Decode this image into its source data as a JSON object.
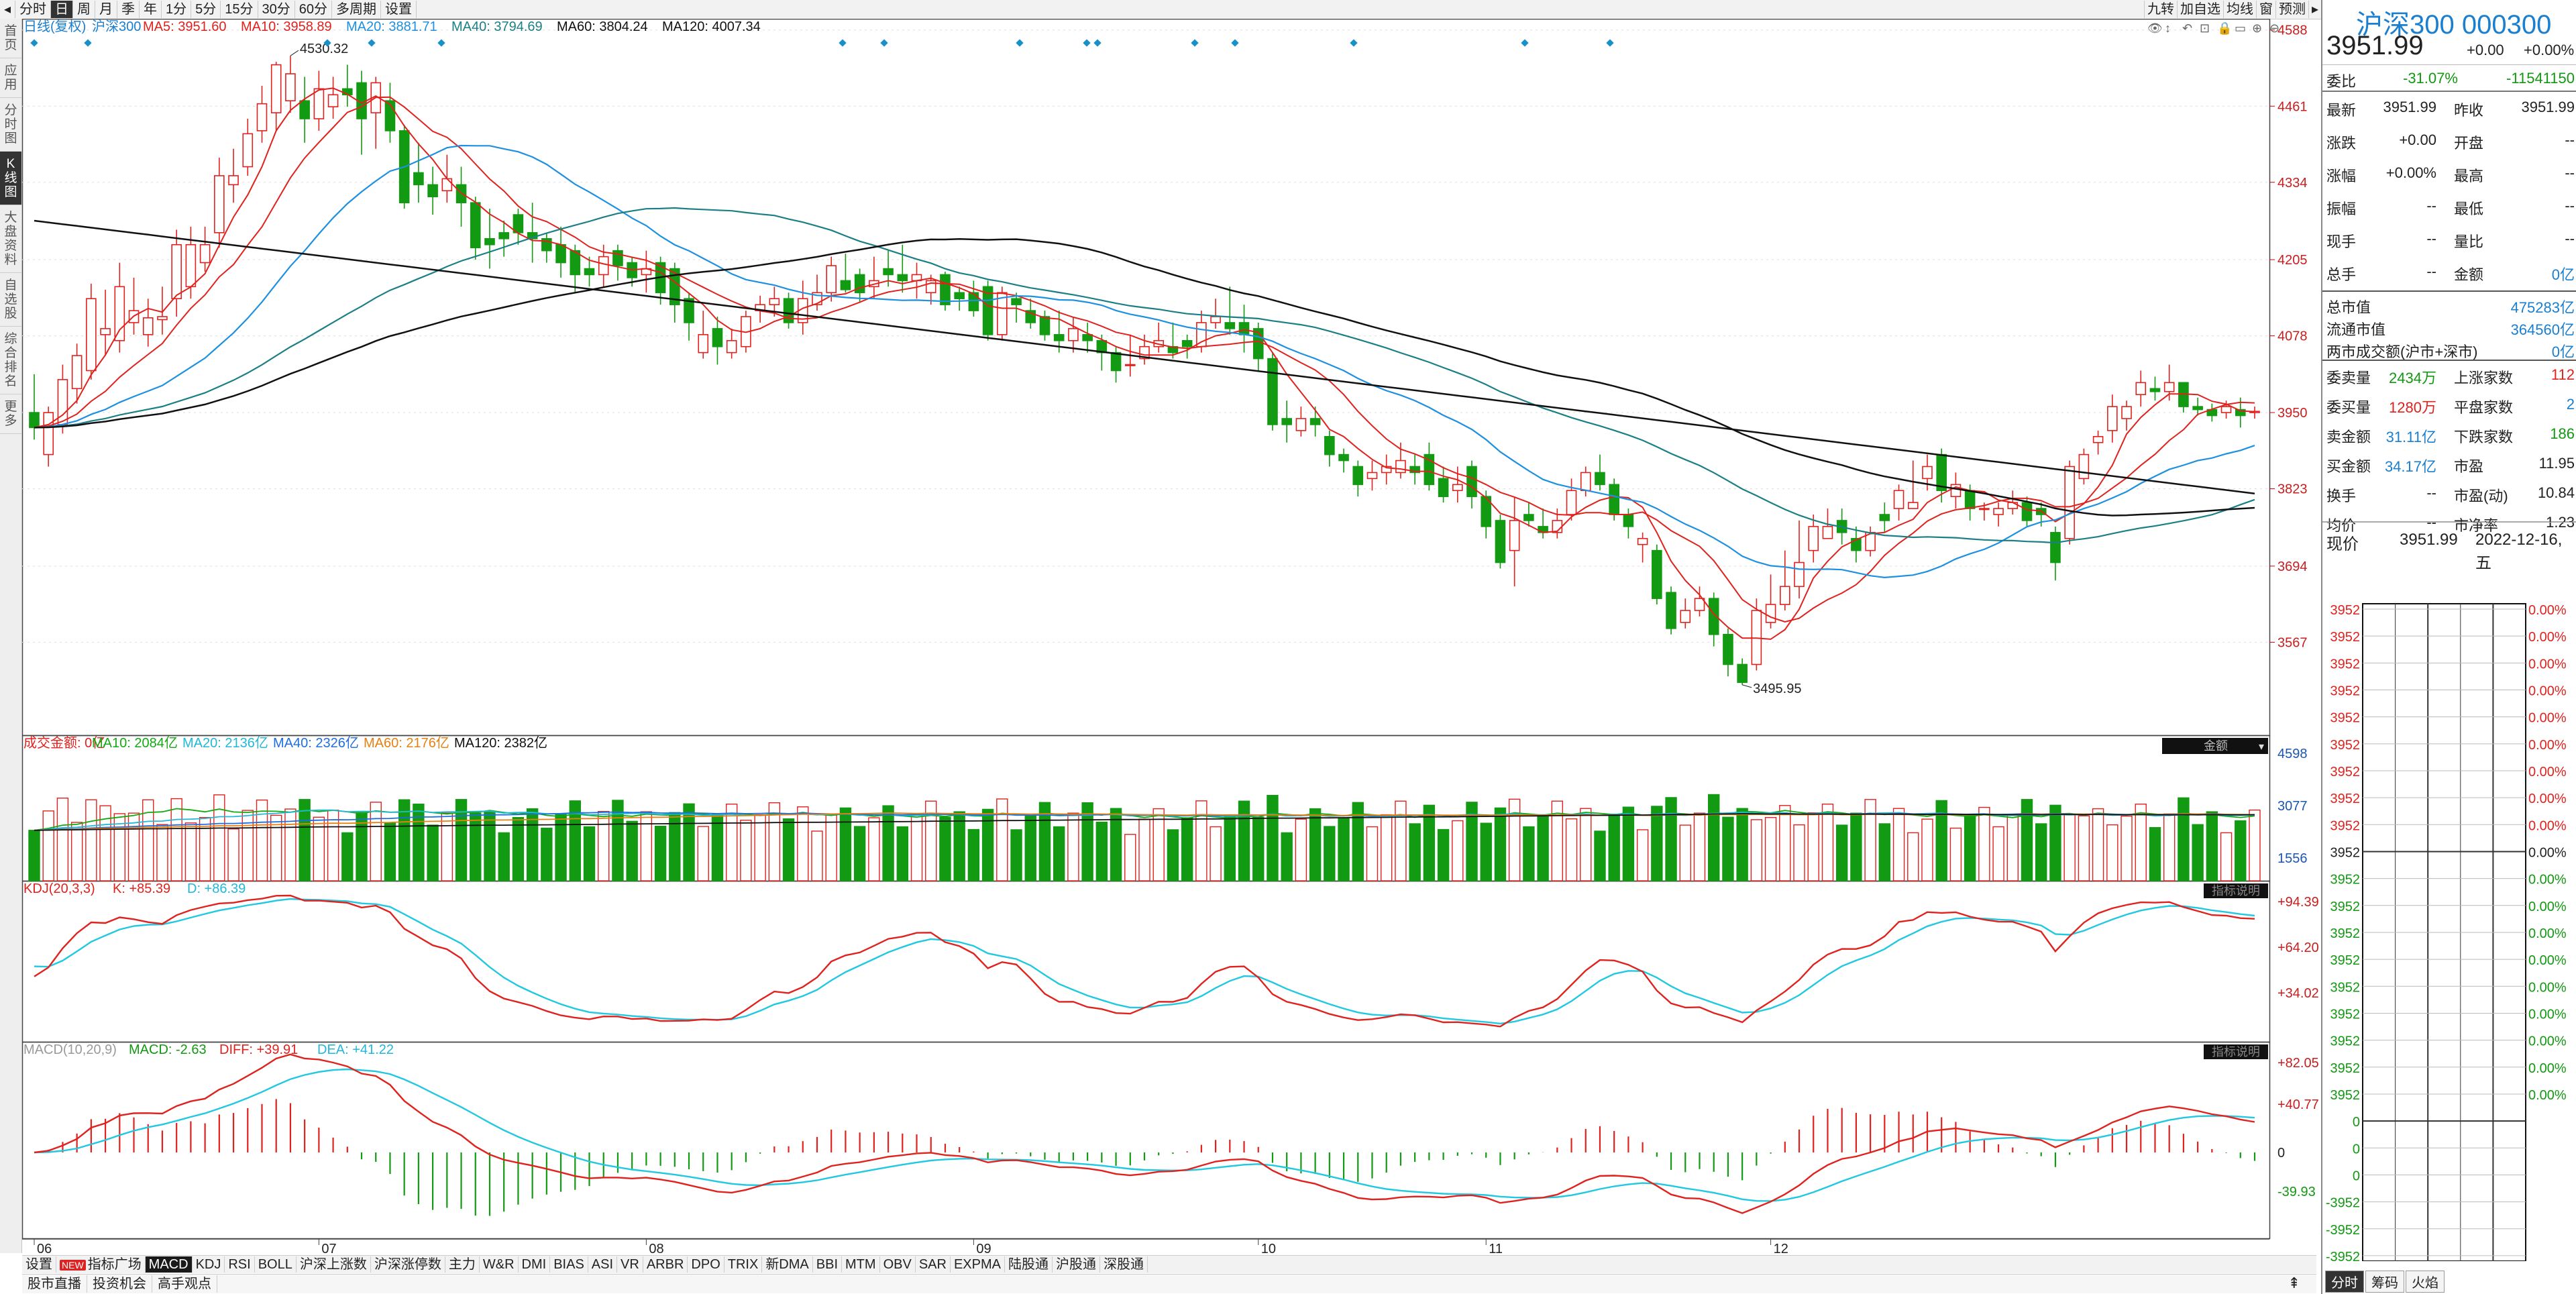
{
  "toolbar": {
    "left": [
      "分时",
      "日",
      "周",
      "月",
      "季",
      "年",
      "1分",
      "5分",
      "15分",
      "30分",
      "60分",
      "多周期",
      "设置"
    ],
    "active": "日",
    "right": [
      "九转",
      "加自选",
      "均线",
      "窗",
      "预测"
    ]
  },
  "left_nav": [
    {
      "label": "首页"
    },
    {
      "label": "应用"
    },
    {
      "label": "分时图"
    },
    {
      "label": "K线图",
      "active": true
    },
    {
      "label": "大盘资料"
    },
    {
      "label": "自选股"
    },
    {
      "label": "综合排名"
    },
    {
      "label": "更多"
    }
  ],
  "main_chart": {
    "title": "日线(复权)",
    "name": "沪深300",
    "ma": [
      {
        "label": "MA5: 3951.60",
        "color": "#e0221e"
      },
      {
        "label": "MA10: 3958.89",
        "color": "#e0221e"
      },
      {
        "label": "MA20: 3881.71",
        "color": "#1e90e0"
      },
      {
        "label": "MA40: 3794.69",
        "color": "#1b7f86"
      },
      {
        "label": "MA60: 3804.24",
        "color": "#111111"
      },
      {
        "label": "MA120: 4007.34",
        "color": "#111111"
      }
    ],
    "yticks": [
      4588,
      4461,
      4334,
      4205,
      4078,
      3950,
      3823,
      3694,
      3567
    ],
    "high_label": "4530.32",
    "low_label": "3495.95"
  },
  "volume_panel": {
    "legend": [
      {
        "label": "成交金额: 0亿",
        "color": "#e0221e"
      },
      {
        "label": "MA10: 2084亿",
        "color": "#11aa11"
      },
      {
        "label": "MA20: 2136亿",
        "color": "#20b8d8"
      },
      {
        "label": "MA40: 2326亿",
        "color": "#1e6ee0"
      },
      {
        "label": "MA60: 2176亿",
        "color": "#e88010"
      },
      {
        "label": "MA120: 2382亿",
        "color": "#111111"
      }
    ],
    "box": "金额",
    "yticks": [
      "4598",
      "3077",
      "1556"
    ]
  },
  "kdj_panel": {
    "legend": [
      {
        "label": "KDJ(20,3,3)",
        "color": "#e0221e"
      },
      {
        "label": "K: +85.39",
        "color": "#e0221e"
      },
      {
        "label": "D: +86.39",
        "color": "#20b8d8"
      }
    ],
    "box": "指标说明",
    "yticks": [
      "+94.39",
      "+64.20",
      "+34.02"
    ]
  },
  "macd_panel": {
    "legend": [
      {
        "label": "MACD(10,20,9)",
        "color": "#999999"
      },
      {
        "label": "MACD: -2.63",
        "color": "#119911"
      },
      {
        "label": "DIFF: +39.91",
        "color": "#e0221e"
      },
      {
        "label": "DEA: +41.22",
        "color": "#20b8d8"
      }
    ],
    "box": "指标说明",
    "yticks": [
      "+82.05",
      "+40.77",
      "0",
      "-39.93"
    ]
  },
  "x_months": [
    "06",
    "07",
    "08",
    "09",
    "10",
    "11",
    "12"
  ],
  "indicator_tabs": [
    "设置",
    "指标广场",
    "MACD",
    "KDJ",
    "RSI",
    "BOLL",
    "沪深上涨数",
    "沪深涨停数",
    "主力",
    "W&R",
    "DMI",
    "BIAS",
    "ASI",
    "VR",
    "ARBR",
    "DPO",
    "TRIX",
    "新DMA",
    "BBI",
    "MTM",
    "OBV",
    "SAR",
    "EXPMA",
    "陆股通",
    "沪股通",
    "深股通"
  ],
  "indicator_active": "MACD",
  "new_badge": "NEW",
  "bottom_tabs": [
    "股市直播",
    "投资机会",
    "高手观点"
  ],
  "panel": {
    "name": "沪深300 000300",
    "price": "3951.99",
    "change": "+0.00",
    "pct": "+0.00%",
    "weibi": {
      "label": "委比",
      "v1": "-31.07%",
      "v2": "-11541150"
    },
    "rows1": [
      [
        {
          "t": "最新",
          "c": "dark"
        },
        {
          "t": "3951.99",
          "c": "dark"
        },
        {
          "t": "昨收",
          "c": "dark"
        },
        {
          "t": "3951.99",
          "c": "dark"
        }
      ],
      [
        {
          "t": "涨跌",
          "c": "dark"
        },
        {
          "t": "+0.00",
          "c": "dark"
        },
        {
          "t": "开盘",
          "c": "dark"
        },
        {
          "t": "--",
          "c": "dark"
        }
      ],
      [
        {
          "t": "涨幅",
          "c": "dark"
        },
        {
          "t": "+0.00%",
          "c": "dark"
        },
        {
          "t": "最高",
          "c": "dark"
        },
        {
          "t": "--",
          "c": "dark"
        }
      ],
      [
        {
          "t": "振幅",
          "c": "dark"
        },
        {
          "t": "--",
          "c": "dark"
        },
        {
          "t": "最低",
          "c": "dark"
        },
        {
          "t": "--",
          "c": "dark"
        }
      ],
      [
        {
          "t": "现手",
          "c": "dark"
        },
        {
          "t": "--",
          "c": "dark"
        },
        {
          "t": "量比",
          "c": "dark"
        },
        {
          "t": "--",
          "c": "dark"
        }
      ],
      [
        {
          "t": "总手",
          "c": "dark"
        },
        {
          "t": "--",
          "c": "dark"
        },
        {
          "t": "金额",
          "c": "dark"
        },
        {
          "t": "0亿",
          "c": "blue"
        }
      ]
    ],
    "rows2": [
      {
        "l": "总市值",
        "v": "475283亿"
      },
      {
        "l": "流通市值",
        "v": "364560亿"
      },
      {
        "l": "两市成交额(沪市+深市)",
        "v": "0亿"
      }
    ],
    "rows3": [
      [
        {
          "t": "委卖量",
          "c": "dark"
        },
        {
          "t": "2434万",
          "c": "green"
        },
        {
          "t": "上涨家数",
          "c": "dark"
        },
        {
          "t": "112",
          "c": "red"
        }
      ],
      [
        {
          "t": "委买量",
          "c": "dark"
        },
        {
          "t": "1280万",
          "c": "red"
        },
        {
          "t": "平盘家数",
          "c": "dark"
        },
        {
          "t": "2",
          "c": "blue"
        }
      ],
      [
        {
          "t": "卖金额",
          "c": "dark"
        },
        {
          "t": "31.11亿",
          "c": "blue"
        },
        {
          "t": "下跌家数",
          "c": "dark"
        },
        {
          "t": "186",
          "c": "green"
        }
      ],
      [
        {
          "t": "买金额",
          "c": "dark"
        },
        {
          "t": "34.17亿",
          "c": "blue"
        },
        {
          "t": "市盈",
          "c": "dark"
        },
        {
          "t": "11.95",
          "c": "dark"
        }
      ],
      [
        {
          "t": "换手",
          "c": "dark"
        },
        {
          "t": "--",
          "c": "dark"
        },
        {
          "t": "市盈(动)",
          "c": "dark"
        },
        {
          "t": "10.84",
          "c": "dark"
        }
      ],
      [
        {
          "t": "均价",
          "c": "dark"
        },
        {
          "t": "--",
          "c": "dark"
        },
        {
          "t": "市净率",
          "c": "dark"
        },
        {
          "t": "1.23",
          "c": "dark"
        }
      ]
    ],
    "now": {
      "label": "现价",
      "price": "3951.99",
      "date": "2022-12-16,五"
    },
    "mini_left": [
      "3952",
      "3952",
      "3952",
      "3952",
      "3952",
      "3952",
      "3952",
      "3952",
      "3952",
      "3952",
      "3952",
      "3952",
      "3952",
      "3952",
      "3952",
      "3952",
      "3952",
      "3952",
      "3952",
      "0",
      "0",
      "0",
      "-3952",
      "-3952",
      "-3952"
    ],
    "mini_right": [
      "0.00%",
      "0.00%",
      "0.00%",
      "0.00%",
      "0.00%",
      "0.00%",
      "0.00%",
      "0.00%",
      "0.00%",
      "0.00%",
      "0.00%",
      "0.00%",
      "0.00%",
      "0.00%",
      "0.00%",
      "0.00%",
      "0.00%",
      "0.00%",
      "0.00%"
    ],
    "tabs": [
      "分时",
      "筹码",
      "火焰"
    ],
    "tab_active": "分时"
  },
  "chart_data": {
    "type": "candlestick",
    "series_name": "沪深300",
    "ylim": [
      3450,
      4600
    ],
    "candles": [
      [
        3950,
        3925,
        4014,
        3905
      ],
      [
        3880,
        3950,
        3960,
        3860
      ],
      [
        3930,
        4005,
        4030,
        3915
      ],
      [
        3990,
        4045,
        4065,
        3965
      ],
      [
        4020,
        4140,
        4165,
        4005
      ],
      [
        4080,
        4090,
        4155,
        4045
      ],
      [
        4070,
        4160,
        4200,
        4050
      ],
      [
        4100,
        4120,
        4175,
        4080
      ],
      [
        4080,
        4108,
        4140,
        4060
      ],
      [
        4105,
        4110,
        4160,
        4080
      ],
      [
        4140,
        4230,
        4255,
        4110
      ],
      [
        4160,
        4230,
        4260,
        4140
      ],
      [
        4200,
        4230,
        4260,
        4185
      ],
      [
        4250,
        4345,
        4375,
        4225
      ],
      [
        4330,
        4345,
        4390,
        4300
      ],
      [
        4360,
        4415,
        4440,
        4345
      ],
      [
        4420,
        4465,
        4495,
        4400
      ],
      [
        4450,
        4530,
        4535,
        4420
      ],
      [
        4470,
        4515,
        4545,
        4450
      ],
      [
        4470,
        4440,
        4510,
        4400
      ],
      [
        4440,
        4490,
        4520,
        4420
      ],
      [
        4460,
        4480,
        4510,
        4440
      ],
      [
        4490,
        4480,
        4530,
        4460
      ],
      [
        4500,
        4440,
        4520,
        4380
      ],
      [
        4450,
        4500,
        4510,
        4390
      ],
      [
        4470,
        4420,
        4500,
        4400
      ],
      [
        4420,
        4300,
        4430,
        4290
      ],
      [
        4350,
        4330,
        4400,
        4300
      ],
      [
        4330,
        4310,
        4360,
        4280
      ],
      [
        4320,
        4340,
        4380,
        4300
      ],
      [
        4330,
        4300,
        4360,
        4260
      ],
      [
        4300,
        4225,
        4310,
        4205
      ],
      [
        4240,
        4230,
        4290,
        4190
      ],
      [
        4250,
        4240,
        4270,
        4210
      ],
      [
        4280,
        4250,
        4290,
        4230
      ],
      [
        4250,
        4240,
        4300,
        4200
      ],
      [
        4240,
        4220,
        4250,
        4200
      ],
      [
        4230,
        4200,
        4260,
        4175
      ],
      [
        4220,
        4180,
        4230,
        4150
      ],
      [
        4190,
        4180,
        4210,
        4160
      ],
      [
        4180,
        4210,
        4230,
        4160
      ],
      [
        4220,
        4195,
        4230,
        4170
      ],
      [
        4200,
        4175,
        4210,
        4160
      ],
      [
        4180,
        4190,
        4220,
        4150
      ],
      [
        4200,
        4150,
        4210,
        4130
      ],
      [
        4190,
        4130,
        4200,
        4100
      ],
      [
        4140,
        4100,
        4150,
        4070
      ],
      [
        4050,
        4080,
        4120,
        4040
      ],
      [
        4090,
        4060,
        4110,
        4030
      ],
      [
        4050,
        4070,
        4090,
        4040
      ],
      [
        4060,
        4110,
        4120,
        4050
      ],
      [
        4120,
        4130,
        4145,
        4100
      ],
      [
        4130,
        4140,
        4160,
        4110
      ],
      [
        4140,
        4100,
        4150,
        4090
      ],
      [
        4100,
        4140,
        4170,
        4080
      ],
      [
        4130,
        4150,
        4180,
        4120
      ],
      [
        4150,
        4195,
        4210,
        4135
      ],
      [
        4170,
        4155,
        4215,
        4150
      ],
      [
        4180,
        4150,
        4190,
        4135
      ],
      [
        4160,
        4170,
        4210,
        4140
      ],
      [
        4190,
        4180,
        4220,
        4160
      ],
      [
        4180,
        4170,
        4230,
        4150
      ],
      [
        4170,
        4180,
        4200,
        4140
      ],
      [
        4150,
        4170,
        4180,
        4130
      ],
      [
        4180,
        4130,
        4185,
        4120
      ],
      [
        4150,
        4140,
        4160,
        4120
      ],
      [
        4150,
        4120,
        4170,
        4110
      ],
      [
        4160,
        4080,
        4170,
        4070
      ],
      [
        4080,
        4150,
        4160,
        4070
      ],
      [
        4140,
        4130,
        4150,
        4100
      ],
      [
        4120,
        4100,
        4140,
        4090
      ],
      [
        4110,
        4080,
        4120,
        4070
      ],
      [
        4080,
        4070,
        4120,
        4050
      ],
      [
        4070,
        4090,
        4110,
        4050
      ],
      [
        4080,
        4070,
        4100,
        4050
      ],
      [
        4070,
        4050,
        4080,
        4020
      ],
      [
        4050,
        4020,
        4060,
        4000
      ],
      [
        4030,
        4030,
        4080,
        4010
      ],
      [
        4040,
        4060,
        4080,
        4030
      ],
      [
        4060,
        4070,
        4100,
        4050
      ],
      [
        4060,
        4050,
        4100,
        4040
      ],
      [
        4070,
        4060,
        4080,
        4040
      ],
      [
        4060,
        4100,
        4120,
        4050
      ],
      [
        4100,
        4110,
        4140,
        4090
      ],
      [
        4100,
        4090,
        4160,
        4080
      ],
      [
        4100,
        4080,
        4130,
        4050
      ],
      [
        4090,
        4040,
        4100,
        4020
      ],
      [
        4040,
        3930,
        4050,
        3920
      ],
      [
        3940,
        3930,
        3970,
        3900
      ],
      [
        3920,
        3940,
        3960,
        3910
      ],
      [
        3940,
        3930,
        3960,
        3910
      ],
      [
        3910,
        3880,
        3920,
        3860
      ],
      [
        3880,
        3870,
        3890,
        3850
      ],
      [
        3860,
        3830,
        3870,
        3810
      ],
      [
        3840,
        3850,
        3870,
        3820
      ],
      [
        3850,
        3860,
        3880,
        3830
      ],
      [
        3850,
        3870,
        3900,
        3840
      ],
      [
        3860,
        3850,
        3880,
        3830
      ],
      [
        3880,
        3830,
        3900,
        3820
      ],
      [
        3840,
        3810,
        3860,
        3800
      ],
      [
        3820,
        3830,
        3860,
        3800
      ],
      [
        3860,
        3810,
        3870,
        3790
      ],
      [
        3810,
        3760,
        3820,
        3740
      ],
      [
        3770,
        3700,
        3780,
        3690
      ],
      [
        3720,
        3770,
        3810,
        3660
      ],
      [
        3780,
        3770,
        3800,
        3760
      ],
      [
        3760,
        3750,
        3790,
        3740
      ],
      [
        3750,
        3770,
        3790,
        3740
      ],
      [
        3780,
        3820,
        3840,
        3770
      ],
      [
        3820,
        3850,
        3860,
        3810
      ],
      [
        3850,
        3830,
        3880,
        3820
      ],
      [
        3830,
        3780,
        3840,
        3770
      ],
      [
        3780,
        3760,
        3790,
        3740
      ],
      [
        3730,
        3740,
        3750,
        3700
      ],
      [
        3720,
        3640,
        3730,
        3630
      ],
      [
        3650,
        3590,
        3660,
        3580
      ],
      [
        3600,
        3620,
        3640,
        3590
      ],
      [
        3620,
        3640,
        3660,
        3610
      ],
      [
        3640,
        3580,
        3650,
        3560
      ],
      [
        3580,
        3530,
        3590,
        3510
      ],
      [
        3530,
        3500,
        3540,
        3496
      ],
      [
        3530,
        3620,
        3640,
        3520
      ],
      [
        3600,
        3630,
        3680,
        3590
      ],
      [
        3630,
        3660,
        3720,
        3620
      ],
      [
        3660,
        3700,
        3770,
        3640
      ],
      [
        3720,
        3760,
        3780,
        3700
      ],
      [
        3740,
        3760,
        3790,
        3740
      ],
      [
        3770,
        3750,
        3790,
        3730
      ],
      [
        3740,
        3720,
        3760,
        3700
      ],
      [
        3720,
        3750,
        3760,
        3710
      ],
      [
        3780,
        3770,
        3800,
        3750
      ],
      [
        3790,
        3820,
        3830,
        3770
      ],
      [
        3790,
        3800,
        3870,
        3790
      ],
      [
        3840,
        3860,
        3880,
        3820
      ],
      [
        3880,
        3820,
        3890,
        3800
      ],
      [
        3810,
        3830,
        3850,
        3790
      ],
      [
        3820,
        3790,
        3830,
        3770
      ],
      [
        3790,
        3790,
        3800,
        3770
      ],
      [
        3780,
        3790,
        3800,
        3760
      ],
      [
        3790,
        3800,
        3820,
        3780
      ],
      [
        3800,
        3770,
        3810,
        3760
      ],
      [
        3790,
        3780,
        3800,
        3760
      ],
      [
        3750,
        3700,
        3760,
        3670
      ],
      [
        3740,
        3860,
        3870,
        3730
      ],
      [
        3840,
        3880,
        3890,
        3830
      ],
      [
        3900,
        3910,
        3920,
        3880
      ],
      [
        3920,
        3960,
        3980,
        3900
      ],
      [
        3940,
        3960,
        3970,
        3920
      ],
      [
        3980,
        4000,
        4020,
        3960
      ],
      [
        3990,
        3985,
        4010,
        3970
      ],
      [
        3985,
        4000,
        4030,
        3970
      ],
      [
        4000,
        3960,
        4000,
        3950
      ],
      [
        3960,
        3955,
        3975,
        3945
      ],
      [
        3955,
        3945,
        3965,
        3935
      ],
      [
        3950,
        3960,
        3970,
        3940
      ],
      [
        3955,
        3945,
        3975,
        3925
      ],
      [
        3950,
        3952,
        3960,
        3940
      ]
    ]
  }
}
